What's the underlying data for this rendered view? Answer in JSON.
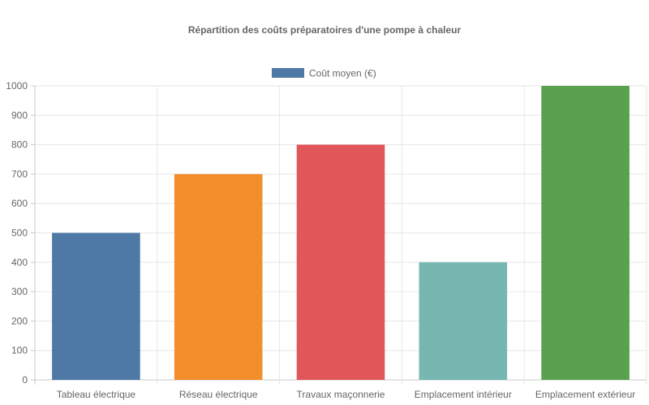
{
  "chart_data": {
    "type": "bar",
    "title": "Répartition des coûts préparatoires d'une pompe à chaleur",
    "categories": [
      "Tableau électrique",
      "Réseau électrique",
      "Travaux maçonnerie",
      "Emplacement intérieur",
      "Emplacement extérieur"
    ],
    "series": [
      {
        "name": "Coût moyen (€)",
        "values": [
          500,
          700,
          800,
          400,
          1000
        ],
        "colors": [
          "#4e79a7",
          "#f28e2b",
          "#e15759",
          "#76b7b2",
          "#59a14f"
        ]
      }
    ],
    "legend_color": "#4e79a7",
    "legend_position": "top",
    "ylim": [
      0,
      1000
    ],
    "yticks": [
      0,
      100,
      200,
      300,
      400,
      500,
      600,
      700,
      800,
      900,
      1000
    ],
    "grid": true
  }
}
